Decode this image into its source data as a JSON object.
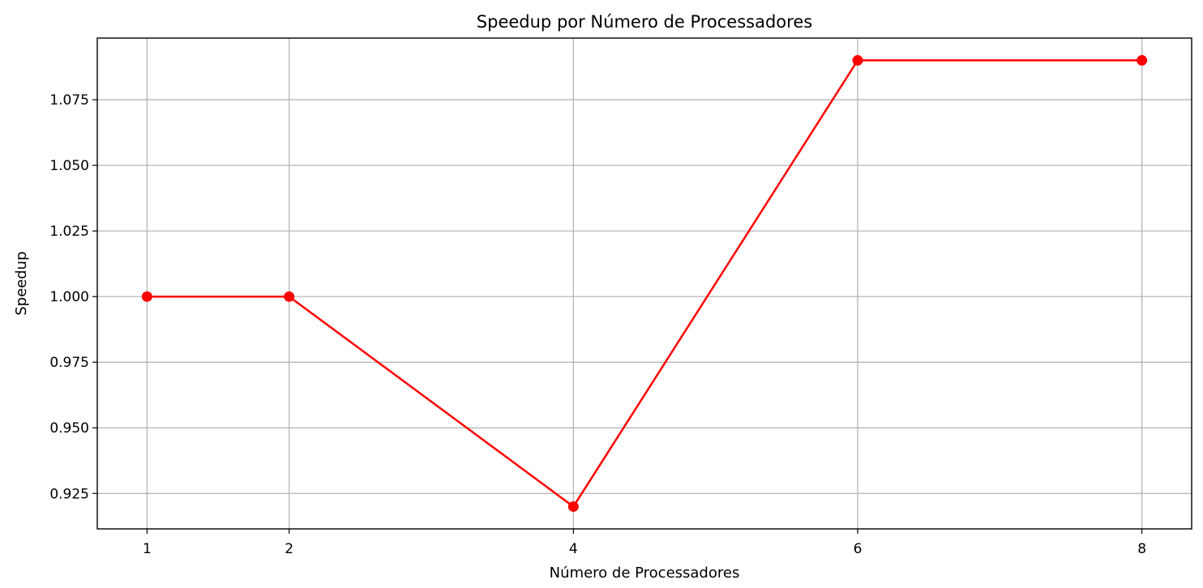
{
  "chart_data": {
    "type": "line",
    "title": "Speedup por Número de Processadores",
    "xlabel": "Número de Processadores",
    "ylabel": "Speedup",
    "x": [
      1,
      2,
      4,
      6,
      8
    ],
    "series": [
      {
        "values": [
          1.0,
          1.0,
          0.92,
          1.09,
          1.09
        ],
        "color": "#ff0000",
        "marker": "circle"
      }
    ],
    "xticks": [
      1,
      2,
      4,
      6,
      8
    ],
    "xtick_labels": [
      "1",
      "2",
      "4",
      "6",
      "8"
    ],
    "yticks": [
      0.925,
      0.95,
      0.975,
      1.0,
      1.025,
      1.05,
      1.075
    ],
    "ytick_labels": [
      "0.925",
      "0.950",
      "0.975",
      "1.000",
      "1.025",
      "1.050",
      "1.075"
    ],
    "xlim": [
      0.65,
      8.35
    ],
    "ylim": [
      0.9115,
      1.0985
    ],
    "grid": true
  }
}
